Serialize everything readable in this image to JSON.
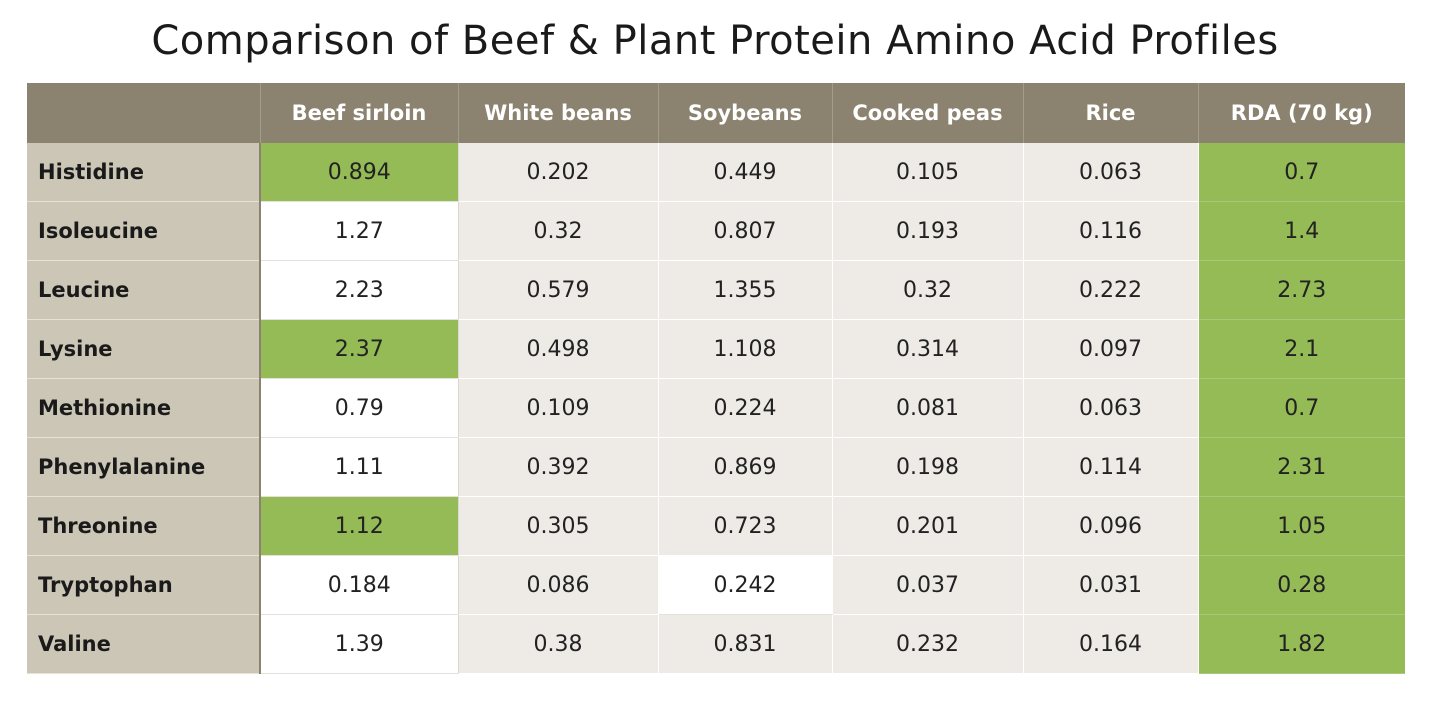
{
  "chart_data": {
    "type": "table",
    "title": "Comparison of Beef & Plant Protein Amino Acid Profiles",
    "corner_label": "",
    "columns": [
      "Beef sirloin",
      "White beans",
      "Soybeans",
      "Cooked peas",
      "Rice",
      "RDA (70 kg)"
    ],
    "rows": [
      {
        "label": "Histidine",
        "values": [
          "0.894",
          "0.202",
          "0.449",
          "0.105",
          "0.063",
          "0.7"
        ],
        "highlight": [
          0
        ]
      },
      {
        "label": "Isoleucine",
        "values": [
          "1.27",
          "0.32",
          "0.807",
          "0.193",
          "0.116",
          "1.4"
        ],
        "highlight": []
      },
      {
        "label": "Leucine",
        "values": [
          "2.23",
          "0.579",
          "1.355",
          "0.32",
          "0.222",
          "2.73"
        ],
        "highlight": []
      },
      {
        "label": "Lysine",
        "values": [
          "2.37",
          "0.498",
          "1.108",
          "0.314",
          "0.097",
          "2.1"
        ],
        "highlight": [
          0
        ]
      },
      {
        "label": "Methionine",
        "values": [
          "0.79",
          "0.109",
          "0.224",
          "0.081",
          "0.063",
          "0.7"
        ],
        "highlight": []
      },
      {
        "label": "Phenylalanine",
        "values": [
          "1.11",
          "0.392",
          "0.869",
          "0.198",
          "0.114",
          "2.31"
        ],
        "highlight": []
      },
      {
        "label": "Threonine",
        "values": [
          "1.12",
          "0.305",
          "0.723",
          "0.201",
          "0.096",
          "1.05"
        ],
        "highlight": [
          0
        ]
      },
      {
        "label": "Tryptophan",
        "values": [
          "0.184",
          "0.086",
          "0.242",
          "0.037",
          "0.031",
          "0.28"
        ],
        "highlight": [],
        "white_cells": [
          2
        ]
      },
      {
        "label": "Valine",
        "values": [
          "1.39",
          "0.38",
          "0.831",
          "0.232",
          "0.164",
          "1.82"
        ],
        "highlight": []
      }
    ],
    "colors": {
      "header_bg": "#8b8370",
      "row_header_bg": "#cbc6b5",
      "cell_bg": "#eeebe6",
      "highlight": "#94bb55",
      "rda_column": "#94bb55"
    }
  }
}
